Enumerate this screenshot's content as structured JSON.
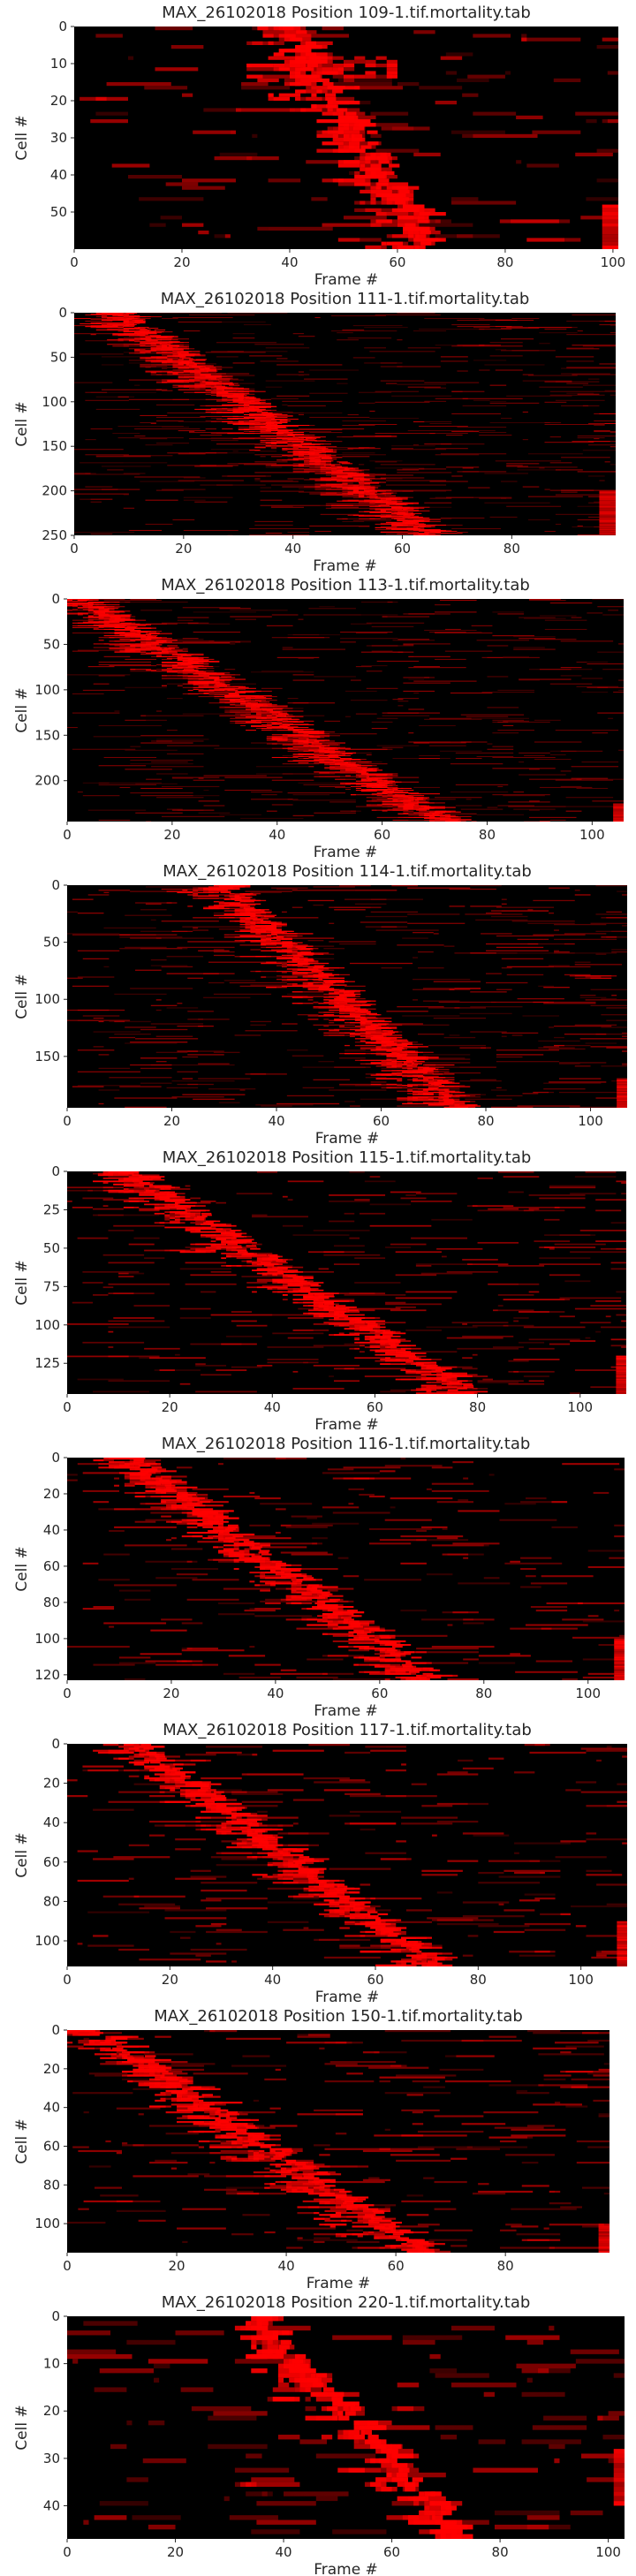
{
  "chart_data": [
    {
      "type": "heatmap",
      "title": "MAX_26102018 Position 109-1.tif.mortality.tab",
      "xlabel": "Frame #",
      "ylabel": "Cell #",
      "colormap": [
        "#000000",
        "#ff0000"
      ],
      "n_frames": 101,
      "n_cells": 60,
      "xticks": [
        0,
        20,
        40,
        60,
        80,
        100
      ],
      "yticks": [
        0,
        10,
        20,
        30,
        40,
        50
      ],
      "diagonal": {
        "start_frame": 40,
        "end_frame": 66
      },
      "burst": {
        "row_start": 8,
        "row_end": 14,
        "frame_start": 40,
        "frame_end": 60
      },
      "end_block": {
        "frame_start": 98,
        "row_start": 48,
        "row_end": 60
      },
      "grid": false
    },
    {
      "type": "heatmap",
      "title": "MAX_26102018 Position 111-1.tif.mortality.tab",
      "xlabel": "Frame #",
      "ylabel": "Cell #",
      "colormap": [
        "#000000",
        "#ff0000"
      ],
      "n_frames": 99,
      "n_cells": 250,
      "xticks": [
        0,
        20,
        40,
        60,
        80
      ],
      "yticks": [
        0,
        50,
        100,
        150,
        200,
        250
      ],
      "diagonal": {
        "start_frame": 8,
        "end_frame": 65
      },
      "end_block": {
        "frame_start": 96,
        "row_start": 200,
        "row_end": 250
      },
      "grid": false
    },
    {
      "type": "heatmap",
      "title": "MAX_26102018 Position 113-1.tif.mortality.tab",
      "xlabel": "Frame #",
      "ylabel": "Cell #",
      "colormap": [
        "#000000",
        "#ff0000"
      ],
      "n_frames": 106,
      "n_cells": 245,
      "xticks": [
        0,
        20,
        40,
        60,
        80,
        100
      ],
      "yticks": [
        0,
        50,
        100,
        150,
        200
      ],
      "diagonal": {
        "start_frame": 3,
        "end_frame": 72
      },
      "end_block": {
        "frame_start": 104,
        "row_start": 225,
        "row_end": 245
      },
      "grid": false
    },
    {
      "type": "heatmap",
      "title": "MAX_26102018 Position 114-1.tif.mortality.tab",
      "xlabel": "Frame #",
      "ylabel": "Cell #",
      "colormap": [
        "#000000",
        "#ff0000"
      ],
      "n_frames": 107,
      "n_cells": 195,
      "xticks": [
        0,
        20,
        40,
        60,
        80,
        100
      ],
      "yticks": [
        0,
        50,
        100,
        150
      ],
      "diagonal": {
        "start_frame": 30,
        "end_frame": 75
      },
      "end_block": {
        "frame_start": 105,
        "row_start": 170,
        "row_end": 195
      },
      "grid": false
    },
    {
      "type": "heatmap",
      "title": "MAX_26102018 Position 115-1.tif.mortality.tab",
      "xlabel": "Frame #",
      "ylabel": "Cell #",
      "colormap": [
        "#000000",
        "#ff0000"
      ],
      "n_frames": 109,
      "n_cells": 145,
      "xticks": [
        0,
        20,
        40,
        60,
        80,
        100
      ],
      "yticks": [
        0,
        25,
        50,
        75,
        100,
        125
      ],
      "diagonal": {
        "start_frame": 12,
        "end_frame": 78
      },
      "end_block": {
        "frame_start": 107,
        "row_start": 120,
        "row_end": 145
      },
      "grid": false
    },
    {
      "type": "heatmap",
      "title": "MAX_26102018 Position 116-1.tif.mortality.tab",
      "xlabel": "Frame #",
      "ylabel": "Cell #",
      "colormap": [
        "#000000",
        "#ff0000"
      ],
      "n_frames": 107,
      "n_cells": 123,
      "xticks": [
        0,
        20,
        40,
        60,
        80,
        100
      ],
      "yticks": [
        0,
        20,
        40,
        60,
        80,
        100,
        120
      ],
      "diagonal": {
        "start_frame": 12,
        "end_frame": 70
      },
      "end_block": {
        "frame_start": 105,
        "row_start": 100,
        "row_end": 123
      },
      "grid": false
    },
    {
      "type": "heatmap",
      "title": "MAX_26102018 Position 117-1.tif.mortality.tab",
      "xlabel": "Frame #",
      "ylabel": "Cell #",
      "colormap": [
        "#000000",
        "#ff0000"
      ],
      "n_frames": 109,
      "n_cells": 113,
      "xticks": [
        0,
        20,
        40,
        60,
        80,
        100
      ],
      "yticks": [
        0,
        20,
        40,
        60,
        80,
        100
      ],
      "diagonal": {
        "start_frame": 14,
        "end_frame": 72
      },
      "end_block": {
        "frame_start": 107,
        "row_start": 90,
        "row_end": 113
      },
      "grid": false
    },
    {
      "type": "heatmap",
      "title": "MAX_26102018 Position 150-1.tif.mortality.tab",
      "xlabel": "Frame #",
      "ylabel": "Cell #",
      "colormap": [
        "#000000",
        "#ff0000"
      ],
      "n_frames": 99,
      "n_cells": 115,
      "xticks": [
        0,
        20,
        40,
        60,
        80
      ],
      "yticks": [
        0,
        20,
        40,
        60,
        80,
        100
      ],
      "diagonal": {
        "start_frame": 5,
        "end_frame": 65
      },
      "end_block": {
        "frame_start": 97,
        "row_start": 100,
        "row_end": 115
      },
      "grid": false
    },
    {
      "type": "heatmap",
      "title": "MAX_26102018 Position 220-1.tif.mortality.tab",
      "xlabel": "Frame #",
      "ylabel": "Cell #",
      "colormap": [
        "#000000",
        "#ff0000"
      ],
      "n_frames": 103,
      "n_cells": 47,
      "xticks": [
        0,
        20,
        40,
        60,
        80,
        100
      ],
      "yticks": [
        0,
        10,
        20,
        30,
        40
      ],
      "diagonal": {
        "start_frame": 35,
        "end_frame": 74
      },
      "end_block": {
        "frame_start": 101,
        "row_start": 28,
        "row_end": 40
      },
      "grid": false
    }
  ]
}
